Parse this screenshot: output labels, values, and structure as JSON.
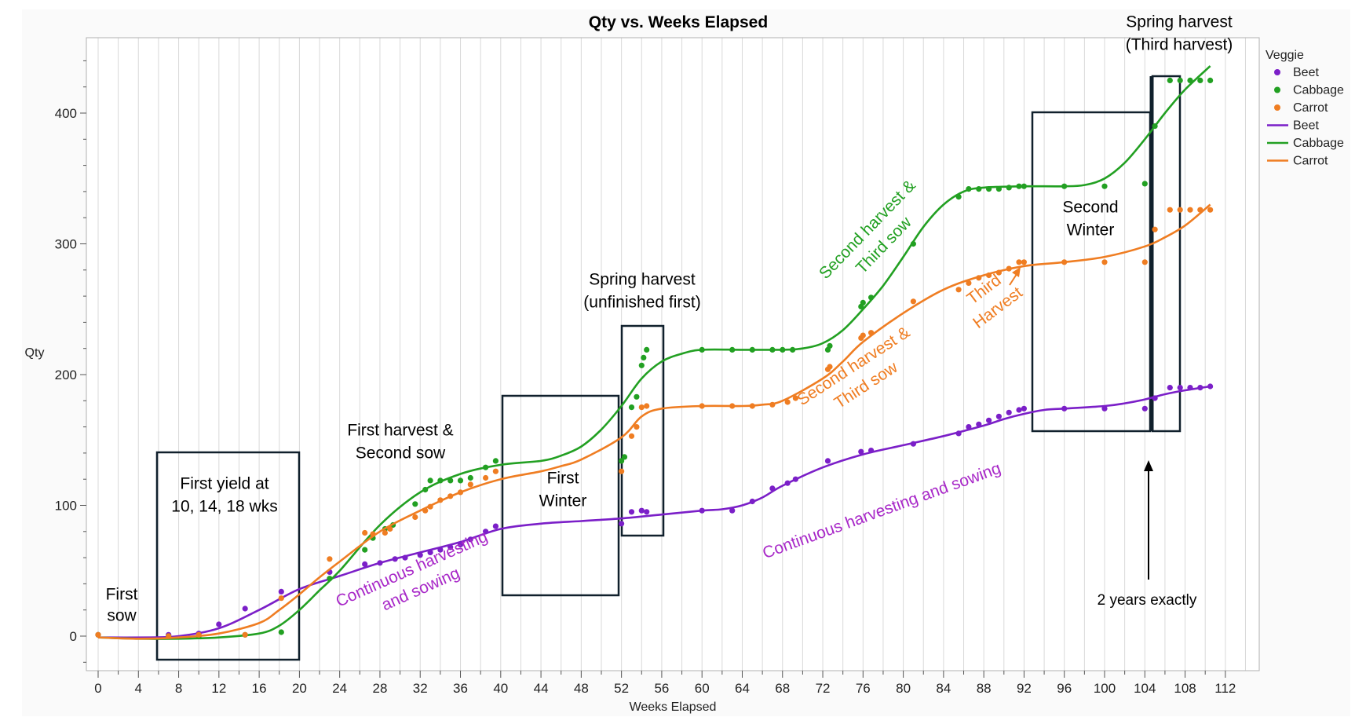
{
  "chart_data": {
    "type": "scatter",
    "title": "Qty vs. Weeks Elapsed",
    "xlabel": "Weeks Elapsed",
    "ylabel": "Qty",
    "xlim": [
      -1,
      116
    ],
    "ylim": [
      -25,
      460
    ],
    "xticks": [
      0,
      4,
      8,
      12,
      16,
      20,
      24,
      28,
      32,
      36,
      40,
      44,
      48,
      52,
      56,
      60,
      64,
      68,
      72,
      76,
      80,
      84,
      88,
      92,
      96,
      100,
      104,
      108,
      112
    ],
    "yticks": [
      0,
      100,
      200,
      300,
      400
    ],
    "grid": "vertical",
    "legend": {
      "title": "Veggie",
      "position": "right",
      "entries": [
        {
          "label": "Beet",
          "kind": "marker",
          "color": "#7B1FC8"
        },
        {
          "label": "Cabbage",
          "kind": "marker",
          "color": "#22A022"
        },
        {
          "label": "Carrot",
          "kind": "marker",
          "color": "#EF7D22"
        },
        {
          "label": "Beet",
          "kind": "line",
          "color": "#7B1FC8"
        },
        {
          "label": "Cabbage",
          "kind": "line",
          "color": "#22A022"
        },
        {
          "label": "Carrot",
          "kind": "line",
          "color": "#EF7D22"
        }
      ]
    },
    "series": [
      {
        "name": "Beet",
        "color": "#7B1FC8",
        "points": [
          [
            0,
            1
          ],
          [
            7,
            1
          ],
          [
            10,
            2
          ],
          [
            12,
            9
          ],
          [
            14.6,
            21
          ],
          [
            18.2,
            34
          ],
          [
            23,
            49
          ],
          [
            26.5,
            55
          ],
          [
            28,
            56
          ],
          [
            29.5,
            59
          ],
          [
            30.5,
            60
          ],
          [
            32,
            62
          ],
          [
            33,
            64
          ],
          [
            34,
            66
          ],
          [
            35,
            68
          ],
          [
            36,
            70
          ],
          [
            37,
            74
          ],
          [
            38.5,
            80
          ],
          [
            39.5,
            84
          ],
          [
            52,
            86
          ],
          [
            53,
            95
          ],
          [
            54,
            96
          ],
          [
            54.5,
            95
          ],
          [
            60,
            96
          ],
          [
            63,
            96
          ],
          [
            65,
            103
          ],
          [
            67,
            113
          ],
          [
            68.5,
            117
          ],
          [
            69.3,
            120
          ],
          [
            72.5,
            134
          ],
          [
            75.8,
            141
          ],
          [
            76.8,
            142
          ],
          [
            81,
            147
          ],
          [
            85.5,
            155
          ],
          [
            86.5,
            160
          ],
          [
            87.5,
            162
          ],
          [
            88.5,
            165
          ],
          [
            89.5,
            168
          ],
          [
            90.5,
            171
          ],
          [
            91.5,
            173
          ],
          [
            92,
            174
          ],
          [
            96,
            174
          ],
          [
            100,
            174
          ],
          [
            104,
            174
          ],
          [
            105,
            182
          ],
          [
            106.5,
            190
          ],
          [
            107.5,
            190
          ],
          [
            108.5,
            190
          ],
          [
            109.5,
            190
          ],
          [
            110.5,
            191
          ]
        ],
        "curve": [
          [
            0,
            -1
          ],
          [
            5,
            -1
          ],
          [
            8,
            0
          ],
          [
            12,
            6
          ],
          [
            16,
            20
          ],
          [
            20,
            36
          ],
          [
            24,
            46
          ],
          [
            28,
            56
          ],
          [
            32,
            64
          ],
          [
            36,
            72
          ],
          [
            40,
            82
          ],
          [
            44,
            86
          ],
          [
            48,
            88
          ],
          [
            52,
            90
          ],
          [
            56,
            93
          ],
          [
            60,
            96
          ],
          [
            62,
            97
          ],
          [
            64,
            100
          ],
          [
            66,
            106
          ],
          [
            68,
            115
          ],
          [
            72,
            129
          ],
          [
            76,
            139
          ],
          [
            80,
            146
          ],
          [
            84,
            153
          ],
          [
            88,
            161
          ],
          [
            90,
            166
          ],
          [
            92,
            170
          ],
          [
            94,
            173
          ],
          [
            96,
            174
          ],
          [
            100,
            176
          ],
          [
            102,
            178
          ],
          [
            104,
            181
          ],
          [
            106,
            185
          ],
          [
            108,
            188
          ],
          [
            110.5,
            191
          ]
        ]
      },
      {
        "name": "Cabbage",
        "color": "#22A022",
        "points": [
          [
            0,
            1
          ],
          [
            7,
            0
          ],
          [
            10,
            0
          ],
          [
            14.6,
            1
          ],
          [
            18.2,
            3
          ],
          [
            23,
            44
          ],
          [
            26.5,
            66
          ],
          [
            27.3,
            75
          ],
          [
            28.5,
            82
          ],
          [
            29.3,
            85
          ],
          [
            31.5,
            101
          ],
          [
            32.5,
            112
          ],
          [
            33,
            119
          ],
          [
            34,
            119
          ],
          [
            35,
            119
          ],
          [
            36,
            119
          ],
          [
            37,
            121
          ],
          [
            38.5,
            129
          ],
          [
            39.5,
            134
          ],
          [
            52,
            134
          ],
          [
            52.3,
            137
          ],
          [
            53,
            175
          ],
          [
            53.5,
            183
          ],
          [
            54,
            207
          ],
          [
            54.2,
            213
          ],
          [
            54.5,
            219
          ],
          [
            60,
            219
          ],
          [
            63,
            219
          ],
          [
            65,
            219
          ],
          [
            67,
            219
          ],
          [
            68,
            219
          ],
          [
            69,
            219
          ],
          [
            72.5,
            219
          ],
          [
            72.7,
            222
          ],
          [
            75.8,
            252
          ],
          [
            76,
            255
          ],
          [
            76.8,
            259
          ],
          [
            81,
            300
          ],
          [
            85.5,
            336
          ],
          [
            86.5,
            342
          ],
          [
            87.5,
            342
          ],
          [
            88.5,
            342
          ],
          [
            89.5,
            342
          ],
          [
            90.5,
            343
          ],
          [
            91.5,
            344
          ],
          [
            92,
            344
          ],
          [
            96,
            344
          ],
          [
            100,
            344
          ],
          [
            104,
            346
          ],
          [
            105,
            390
          ],
          [
            106.5,
            425
          ],
          [
            107.5,
            425
          ],
          [
            108.5,
            425
          ],
          [
            109.5,
            425
          ],
          [
            110.5,
            425
          ]
        ],
        "curve": [
          [
            0,
            -1
          ],
          [
            4,
            -2
          ],
          [
            8,
            -2
          ],
          [
            12,
            -1
          ],
          [
            16,
            2
          ],
          [
            18,
            8
          ],
          [
            20,
            20
          ],
          [
            22,
            35
          ],
          [
            24,
            50
          ],
          [
            28,
            85
          ],
          [
            32,
            110
          ],
          [
            36,
            124
          ],
          [
            40,
            131
          ],
          [
            44,
            134
          ],
          [
            46,
            138
          ],
          [
            48,
            145
          ],
          [
            50,
            158
          ],
          [
            52,
            176
          ],
          [
            54,
            197
          ],
          [
            56,
            210
          ],
          [
            58,
            216
          ],
          [
            60,
            219
          ],
          [
            64,
            219
          ],
          [
            68,
            219
          ],
          [
            70,
            220
          ],
          [
            72,
            224
          ],
          [
            74,
            234
          ],
          [
            76,
            250
          ],
          [
            78,
            268
          ],
          [
            80,
            290
          ],
          [
            82,
            313
          ],
          [
            84,
            330
          ],
          [
            86,
            340
          ],
          [
            88,
            343
          ],
          [
            92,
            344
          ],
          [
            96,
            344
          ],
          [
            98,
            345
          ],
          [
            100,
            350
          ],
          [
            102,
            362
          ],
          [
            104,
            380
          ],
          [
            106,
            400
          ],
          [
            108,
            418
          ],
          [
            110.5,
            436
          ]
        ]
      },
      {
        "name": "Carrot",
        "color": "#EF7D22",
        "points": [
          [
            0,
            1
          ],
          [
            7,
            0
          ],
          [
            10,
            1
          ],
          [
            14.6,
            1
          ],
          [
            18.2,
            29
          ],
          [
            23,
            59
          ],
          [
            26.5,
            79
          ],
          [
            27.3,
            78
          ],
          [
            28.5,
            79
          ],
          [
            29,
            82
          ],
          [
            31.5,
            91
          ],
          [
            32.5,
            96
          ],
          [
            33,
            99
          ],
          [
            34,
            104
          ],
          [
            35,
            107
          ],
          [
            36,
            110
          ],
          [
            37,
            116
          ],
          [
            38.5,
            121
          ],
          [
            39.5,
            126
          ],
          [
            52,
            126
          ],
          [
            53,
            153
          ],
          [
            53.5,
            160
          ],
          [
            54,
            175
          ],
          [
            54.5,
            176
          ],
          [
            60,
            176
          ],
          [
            63,
            176
          ],
          [
            65,
            176
          ],
          [
            67,
            177
          ],
          [
            68.5,
            179
          ],
          [
            69.3,
            182
          ],
          [
            72.5,
            204
          ],
          [
            72.7,
            206
          ],
          [
            75.8,
            228
          ],
          [
            76,
            230
          ],
          [
            76.8,
            232
          ],
          [
            81,
            256
          ],
          [
            85.5,
            265
          ],
          [
            86.5,
            270
          ],
          [
            87.5,
            274
          ],
          [
            88.5,
            276
          ],
          [
            89.5,
            278
          ],
          [
            90.5,
            281
          ],
          [
            91.5,
            286
          ],
          [
            92,
            286
          ],
          [
            96,
            286
          ],
          [
            100,
            286
          ],
          [
            104,
            286
          ],
          [
            105,
            311
          ],
          [
            106.5,
            326
          ],
          [
            107.5,
            326
          ],
          [
            108.5,
            326
          ],
          [
            109.5,
            326
          ],
          [
            110.5,
            326
          ]
        ],
        "curve": [
          [
            0,
            -1
          ],
          [
            4,
            -2
          ],
          [
            8,
            -1
          ],
          [
            12,
            2
          ],
          [
            16,
            10
          ],
          [
            18,
            20
          ],
          [
            20,
            32
          ],
          [
            22,
            45
          ],
          [
            24,
            57
          ],
          [
            28,
            80
          ],
          [
            32,
            96
          ],
          [
            36,
            110
          ],
          [
            40,
            120
          ],
          [
            44,
            126
          ],
          [
            46,
            130
          ],
          [
            48,
            135
          ],
          [
            52,
            152
          ],
          [
            54,
            168
          ],
          [
            56,
            174
          ],
          [
            60,
            176
          ],
          [
            64,
            176
          ],
          [
            66,
            177
          ],
          [
            68,
            180
          ],
          [
            72,
            197
          ],
          [
            74,
            210
          ],
          [
            76,
            225
          ],
          [
            80,
            247
          ],
          [
            84,
            265
          ],
          [
            88,
            276
          ],
          [
            92,
            283
          ],
          [
            96,
            286
          ],
          [
            100,
            290
          ],
          [
            104,
            298
          ],
          [
            106,
            305
          ],
          [
            108,
            314
          ],
          [
            110.5,
            330
          ]
        ]
      }
    ],
    "annotations": [
      {
        "id": "first-sow",
        "lines": [
          "First",
          "sow"
        ],
        "color": "#000000"
      },
      {
        "id": "first-yield",
        "lines": [
          "First yield at",
          "10, 14, 18 wks"
        ],
        "color": "#000000"
      },
      {
        "id": "first-harvest",
        "lines": [
          "First harvest &",
          "Second sow"
        ],
        "color": "#000000"
      },
      {
        "id": "first-winter",
        "lines": [
          "First",
          "Winter"
        ],
        "color": "#000000"
      },
      {
        "id": "spring-harvest",
        "lines": [
          "Spring harvest",
          "(unfinished first)"
        ],
        "color": "#000000"
      },
      {
        "id": "second-winter",
        "lines": [
          "Second",
          "Winter"
        ],
        "color": "#000000"
      },
      {
        "id": "spring-harvest-3",
        "lines": [
          "Spring harvest",
          "(Third harvest)"
        ],
        "color": "#000000"
      },
      {
        "id": "two-years",
        "lines": [
          "2 years exactly"
        ],
        "color": "#000000"
      },
      {
        "id": "cont-1",
        "lines": [
          "Continuous harvesting",
          "and sowing"
        ],
        "color": "#A828C8"
      },
      {
        "id": "cont-2",
        "lines": [
          "Continuous harvesting and sowing"
        ],
        "color": "#A828C8"
      },
      {
        "id": "cabbage-second",
        "lines": [
          "Second harvest &",
          "Third sow"
        ],
        "color": "#22A022"
      },
      {
        "id": "carrot-second",
        "lines": [
          "Second harvest &",
          "Third sow"
        ],
        "color": "#EF7D22"
      },
      {
        "id": "third-harvest",
        "lines": [
          "Third",
          "Harvest"
        ],
        "color": "#EF7D22"
      }
    ]
  }
}
